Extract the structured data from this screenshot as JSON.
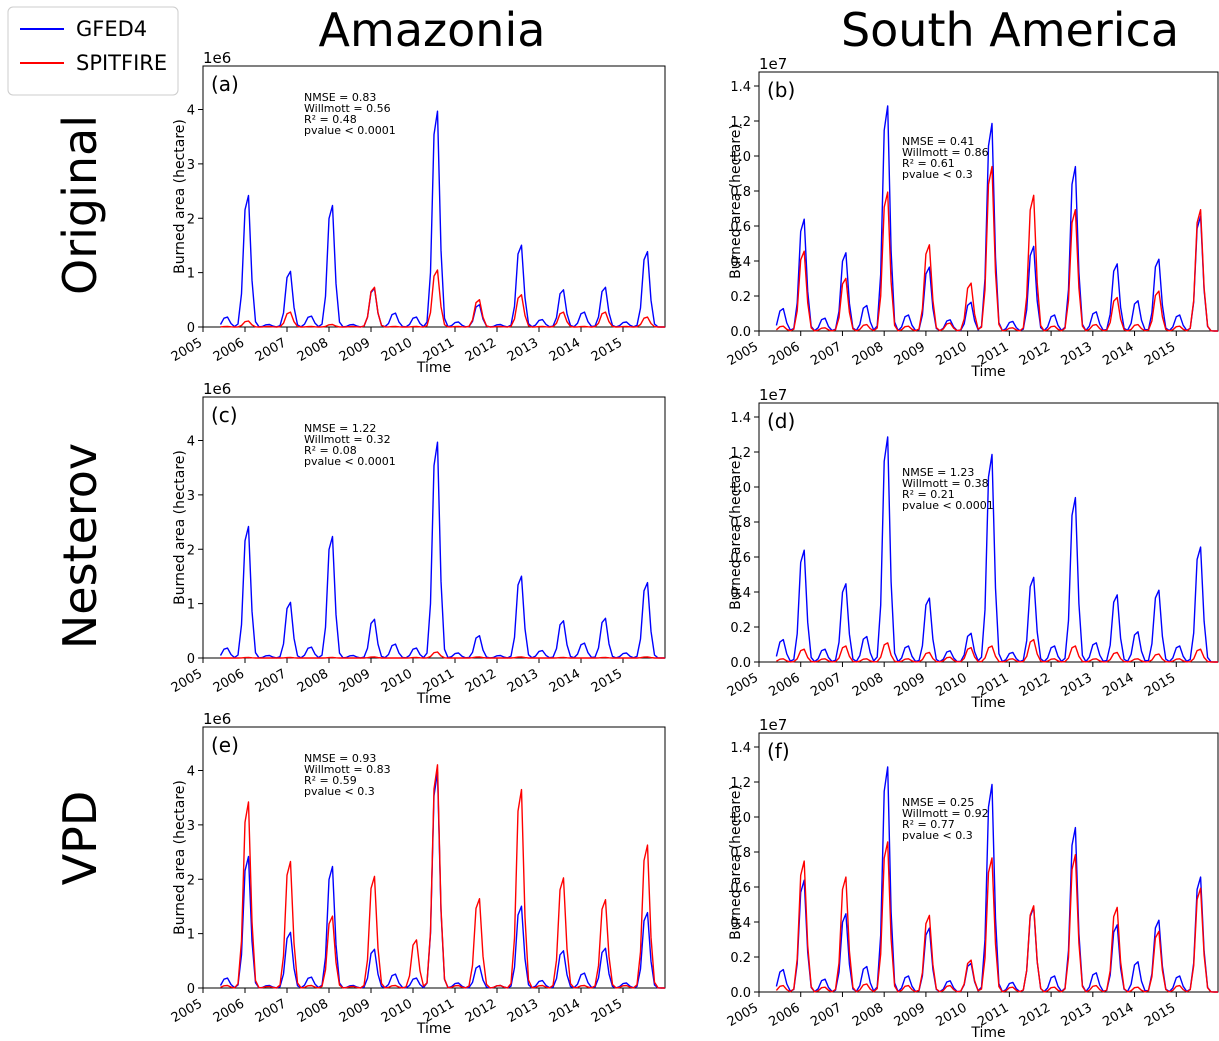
{
  "column_titles": [
    "Amazonia",
    "South America"
  ],
  "row_titles": [
    "Original",
    "Nesterov",
    "VPD"
  ],
  "legend": [
    {
      "label": "GFED4",
      "color": "#0000ff"
    },
    {
      "label": "SPITFIRE",
      "color": "#ff0000"
    }
  ],
  "colors": {
    "GFED4": "#0000ff",
    "SPITFIRE": "#ff0000"
  },
  "chart_data": [
    {
      "type": "line",
      "panel_label": "(a)",
      "region": "Amazonia",
      "row": "Original",
      "xlabel": "Time",
      "ylabel": "Burned area (hectare)",
      "y_exponent": "1e6",
      "xlim": [
        2005,
        2016
      ],
      "ylim": [
        0,
        4.8
      ],
      "x_ticks": [
        "2005",
        "2006",
        "2007",
        "2008",
        "2009",
        "2010",
        "2011",
        "2012",
        "2013",
        "2014",
        "2015"
      ],
      "y_ticks": [
        "0",
        "1",
        "2",
        "3",
        "4"
      ],
      "stats": [
        "NMSE =  0.83",
        "Willmott =   0.56",
        "R² = 0.48",
        "pvalue < 0.0001"
      ],
      "series": [
        {
          "name": "GFED4",
          "color": "#0000ff",
          "peaks": [
            0.2,
            2.65,
            0.05,
            1.12,
            0.22,
            2.45,
            0.05,
            0.78,
            0.28,
            0.2,
            4.35,
            0.1,
            0.45,
            0.05,
            1.65,
            0.15,
            0.75,
            0.3,
            0.8,
            0.1,
            1.52
          ]
        },
        {
          "name": "SPITFIRE",
          "color": "#ff0000",
          "peaks": [
            0.01,
            0.12,
            0.01,
            0.3,
            0.01,
            0.05,
            0.01,
            0.8,
            0.01,
            0.01,
            1.15,
            0.01,
            0.55,
            0.01,
            0.65,
            0.01,
            0.3,
            0.01,
            0.3,
            0.01,
            0.2
          ]
        }
      ]
    },
    {
      "type": "line",
      "panel_label": "(b)",
      "region": "South America",
      "row": "Original",
      "xlabel": "Time",
      "ylabel": "Burned area (hectare)",
      "y_exponent": "1e7",
      "xlim": [
        2005,
        2016
      ],
      "ylim": [
        0,
        1.48
      ],
      "x_ticks": [
        "2005",
        "2006",
        "2007",
        "2008",
        "2009",
        "2010",
        "2011",
        "2012",
        "2013",
        "2014",
        "2015"
      ],
      "y_ticks": [
        "0.0",
        "0.2",
        "0.4",
        "0.6",
        "0.8",
        "1.0",
        "1.2",
        "1.4"
      ],
      "stats": [
        "NMSE =  0.41",
        "Willmott =   0.86",
        "R² = 0.61",
        "pvalue < 0.3"
      ],
      "series": [
        {
          "name": "GFED4",
          "color": "#0000ff",
          "peaks": [
            0.14,
            0.7,
            0.08,
            0.49,
            0.16,
            1.41,
            0.1,
            0.4,
            0.07,
            0.18,
            1.3,
            0.06,
            0.53,
            0.1,
            1.03,
            0.12,
            0.42,
            0.19,
            0.45,
            0.1,
            0.72
          ]
        },
        {
          "name": "SPITFIRE",
          "color": "#ff0000",
          "peaks": [
            0.03,
            0.5,
            0.02,
            0.33,
            0.04,
            0.87,
            0.03,
            0.54,
            0.05,
            0.3,
            1.03,
            0.02,
            0.85,
            0.03,
            0.76,
            0.04,
            0.21,
            0.04,
            0.25,
            0.03,
            0.76
          ]
        }
      ]
    },
    {
      "type": "line",
      "panel_label": "(c)",
      "region": "Amazonia",
      "row": "Nesterov",
      "xlabel": "Time",
      "ylabel": "Burned area (hectare)",
      "y_exponent": "1e6",
      "xlim": [
        2005,
        2016
      ],
      "ylim": [
        0,
        4.8
      ],
      "x_ticks": [
        "2005",
        "2006",
        "2007",
        "2008",
        "2009",
        "2010",
        "2011",
        "2012",
        "2013",
        "2014",
        "2015"
      ],
      "y_ticks": [
        "0",
        "1",
        "2",
        "3",
        "4"
      ],
      "stats": [
        "NMSE =  1.22",
        "Willmott =   0.32",
        "R² = 0.08",
        "pvalue < 0.0001"
      ],
      "series": [
        {
          "name": "GFED4",
          "color": "#0000ff",
          "peaks": [
            0.2,
            2.65,
            0.05,
            1.12,
            0.22,
            2.45,
            0.05,
            0.78,
            0.28,
            0.2,
            4.35,
            0.1,
            0.45,
            0.05,
            1.65,
            0.15,
            0.75,
            0.3,
            0.8,
            0.1,
            1.52
          ]
        },
        {
          "name": "SPITFIRE",
          "color": "#ff0000",
          "peaks": [
            0,
            0.01,
            0,
            0.01,
            0,
            0.01,
            0,
            0.02,
            0,
            0.01,
            0.12,
            0,
            0.02,
            0,
            0.02,
            0,
            0.01,
            0,
            0.01,
            0,
            0.02
          ]
        }
      ]
    },
    {
      "type": "line",
      "panel_label": "(d)",
      "region": "South America",
      "row": "Nesterov",
      "xlabel": "Time",
      "ylabel": "Burned area (hectare)",
      "y_exponent": "1e7",
      "xlim": [
        2005,
        2016
      ],
      "ylim": [
        0,
        1.48
      ],
      "x_ticks": [
        "2005",
        "2006",
        "2007",
        "2008",
        "2009",
        "2010",
        "2011",
        "2012",
        "2013",
        "2014",
        "2015"
      ],
      "y_ticks": [
        "0.0",
        "0.2",
        "0.4",
        "0.6",
        "0.8",
        "1.0",
        "1.2",
        "1.4"
      ],
      "stats": [
        "NMSE =  1.23",
        "Willmott =   0.38",
        "R² = 0.21",
        "pvalue < 0.0001"
      ],
      "series": [
        {
          "name": "GFED4",
          "color": "#0000ff",
          "peaks": [
            0.14,
            0.7,
            0.08,
            0.49,
            0.16,
            1.41,
            0.1,
            0.4,
            0.07,
            0.18,
            1.3,
            0.06,
            0.53,
            0.1,
            1.03,
            0.12,
            0.42,
            0.19,
            0.45,
            0.1,
            0.72
          ]
        },
        {
          "name": "SPITFIRE",
          "color": "#ff0000",
          "peaks": [
            0.02,
            0.08,
            0.02,
            0.1,
            0.02,
            0.12,
            0.02,
            0.06,
            0.03,
            0.09,
            0.1,
            0.02,
            0.14,
            0.02,
            0.1,
            0.02,
            0.06,
            0.02,
            0.05,
            0.02,
            0.08
          ]
        }
      ]
    },
    {
      "type": "line",
      "panel_label": "(e)",
      "region": "Amazonia",
      "row": "VPD",
      "xlabel": "Time",
      "ylabel": "Burned area (hectare)",
      "y_exponent": "1e6",
      "xlim": [
        2005,
        2016
      ],
      "ylim": [
        0,
        4.8
      ],
      "x_ticks": [
        "2005",
        "2006",
        "2007",
        "2008",
        "2009",
        "2010",
        "2011",
        "2012",
        "2013",
        "2014",
        "2015"
      ],
      "y_ticks": [
        "0",
        "1",
        "2",
        "3",
        "4"
      ],
      "stats": [
        "NMSE =  0.93",
        "Willmott =   0.83",
        "R² = 0.59",
        "pvalue < 0.3"
      ],
      "series": [
        {
          "name": "GFED4",
          "color": "#0000ff",
          "peaks": [
            0.2,
            2.65,
            0.05,
            1.12,
            0.22,
            2.45,
            0.05,
            0.78,
            0.28,
            0.2,
            4.35,
            0.1,
            0.45,
            0.05,
            1.65,
            0.15,
            0.75,
            0.3,
            0.8,
            0.1,
            1.52
          ]
        },
        {
          "name": "SPITFIRE",
          "color": "#ff0000",
          "peaks": [
            0.05,
            3.75,
            0.03,
            2.55,
            0.05,
            1.45,
            0.03,
            2.25,
            0.05,
            0.97,
            4.5,
            0.05,
            1.8,
            0.05,
            4.0,
            0.05,
            2.22,
            0.05,
            1.78,
            0.05,
            2.88
          ]
        }
      ]
    },
    {
      "type": "line",
      "panel_label": "(f)",
      "region": "South America",
      "row": "VPD",
      "xlabel": "Time",
      "ylabel": "Burned area (hectare)",
      "y_exponent": "1e7",
      "xlim": [
        2005,
        2016
      ],
      "ylim": [
        0,
        1.48
      ],
      "x_ticks": [
        "2005",
        "2006",
        "2007",
        "2008",
        "2009",
        "2010",
        "2011",
        "2012",
        "2013",
        "2014",
        "2015"
      ],
      "y_ticks": [
        "0.0",
        "0.2",
        "0.4",
        "0.6",
        "0.8",
        "1.0",
        "1.2",
        "1.4"
      ],
      "stats": [
        "NMSE =  0.25",
        "Willmott =   0.92",
        "R² = 0.77",
        "pvalue < 0.3"
      ],
      "series": [
        {
          "name": "GFED4",
          "color": "#0000ff",
          "peaks": [
            0.14,
            0.7,
            0.08,
            0.49,
            0.16,
            1.41,
            0.1,
            0.4,
            0.07,
            0.18,
            1.3,
            0.06,
            0.53,
            0.1,
            1.03,
            0.12,
            0.42,
            0.19,
            0.45,
            0.1,
            0.72
          ]
        },
        {
          "name": "SPITFIRE",
          "color": "#ff0000",
          "peaks": [
            0.04,
            0.82,
            0.03,
            0.72,
            0.05,
            0.94,
            0.04,
            0.48,
            0.04,
            0.2,
            0.84,
            0.03,
            0.54,
            0.03,
            0.86,
            0.04,
            0.53,
            0.03,
            0.38,
            0.04,
            0.65
          ]
        }
      ]
    }
  ]
}
